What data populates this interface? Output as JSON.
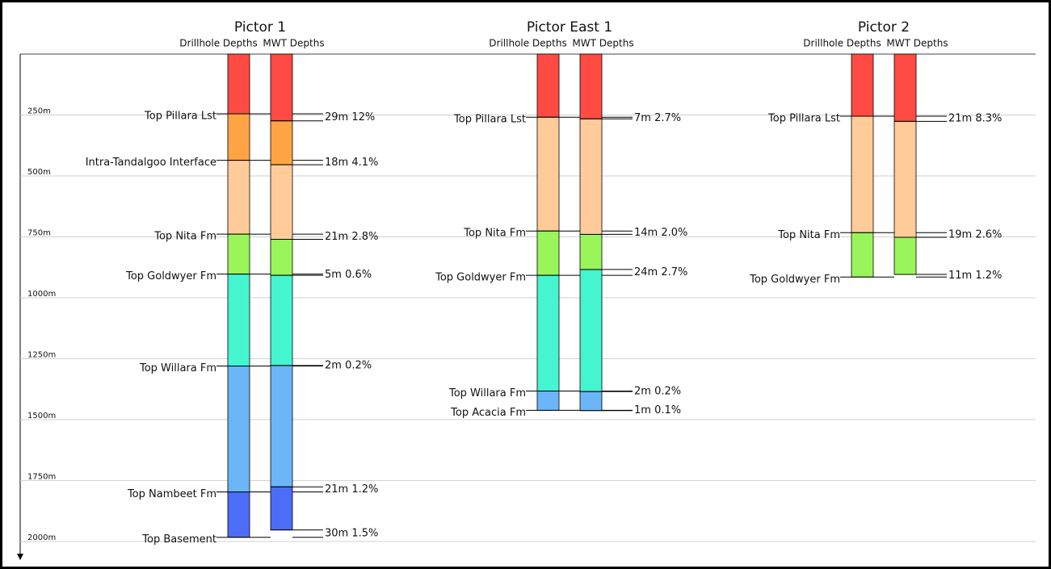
{
  "chart_data": {
    "type": "well-correlation",
    "ylim": [
      0,
      2080
    ],
    "yticks": [
      {
        "value": 250,
        "label": "250m"
      },
      {
        "value": 500,
        "label": "500m"
      },
      {
        "value": 750,
        "label": "750m"
      },
      {
        "value": 1000,
        "label": "1000m"
      },
      {
        "value": 1250,
        "label": "1250m"
      },
      {
        "value": 1500,
        "label": "1500m"
      },
      {
        "value": 1750,
        "label": "1750m"
      },
      {
        "value": 2000,
        "label": "2000m"
      }
    ],
    "grid": true,
    "wells": [
      {
        "name": "Pictor 1",
        "columns": [
          "Drillhole Depths",
          "MWT Depths"
        ],
        "top_color": "#ff4b44",
        "tops": [
          {
            "name": "Top Pillara Lst",
            "drillhole": 245,
            "mwt": 274,
            "label": "29m 12%",
            "color": "#ffa444"
          },
          {
            "name": "Intra-Tandalgoo Interface",
            "drillhole": 436,
            "mwt": 454,
            "label": "18m 4.1%",
            "color": "#ffcc99"
          },
          {
            "name": "Top Nita Fm",
            "drillhole": 739,
            "mwt": 760,
            "label": "21m 2.8%",
            "color": "#99f55a"
          },
          {
            "name": "Top Goldwyer Fm",
            "drillhole": 903,
            "mwt": 908,
            "label": "5m 0.6%",
            "color": "#44f5d0"
          },
          {
            "name": "Top Willara Fm",
            "drillhole": 1280,
            "mwt": 1278,
            "label": "2m 0.2%",
            "color": "#6bb5f8"
          },
          {
            "name": "Top Nambeet Fm",
            "drillhole": 1797,
            "mwt": 1776,
            "label": "21m 1.2%",
            "color": "#4d6cf7"
          },
          {
            "name": "Top Basement",
            "drillhole": 1983,
            "mwt": 1953,
            "label": "30m 1.5%"
          }
        ]
      },
      {
        "name": "Pictor East 1",
        "columns": [
          "Drillhole Depths",
          "MWT Depths"
        ],
        "top_color": "#ff4b44",
        "tops": [
          {
            "name": "Top Pillara Lst",
            "drillhole": 259,
            "mwt": 266,
            "label": "7m 2.7%",
            "color": "#ffcc99"
          },
          {
            "name": "Top Nita Fm",
            "drillhole": 726,
            "mwt": 740,
            "label": "14m 2.0%",
            "color": "#99f55a"
          },
          {
            "name": "Top Goldwyer Fm",
            "drillhole": 908,
            "mwt": 884,
            "label": "24m 2.7%",
            "color": "#44f5d0"
          },
          {
            "name": "Top Willara Fm",
            "drillhole": 1383,
            "mwt": 1385,
            "label": "2m 0.2%",
            "color": "#6bb5f8"
          },
          {
            "name": "Top Acacia Fm",
            "drillhole": 1462,
            "mwt": 1463,
            "label": "1m 0.1%"
          }
        ]
      },
      {
        "name": "Pictor 2",
        "columns": [
          "Drillhole Depths",
          "MWT Depths"
        ],
        "top_color": "#ff4b44",
        "tops": [
          {
            "name": "Top Pillara Lst",
            "drillhole": 255,
            "mwt": 276,
            "label": "21m 8.3%",
            "color": "#ffcc99"
          },
          {
            "name": "Top Nita Fm",
            "drillhole": 733,
            "mwt": 752,
            "label": "19m 2.6%",
            "color": "#99f55a"
          },
          {
            "name": "Top Goldwyer Fm",
            "drillhole": 915,
            "mwt": 904,
            "label": "11m 1.2%"
          }
        ]
      }
    ]
  }
}
